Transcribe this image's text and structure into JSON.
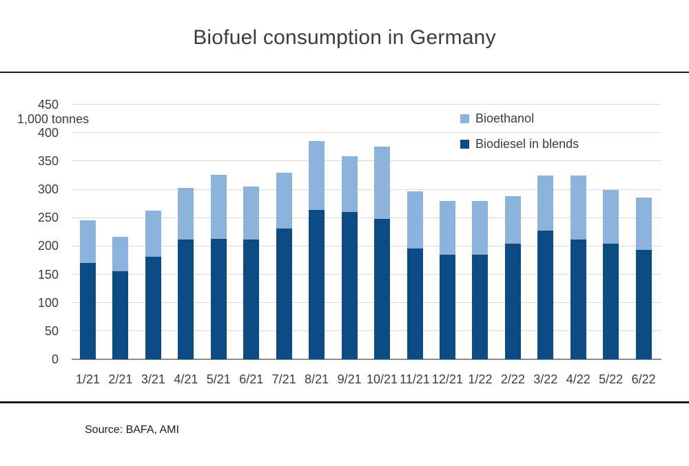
{
  "title": "Biofuel consumption in Germany",
  "unit_label": "1,000 tonnes",
  "source": "Source: BAFA, AMI",
  "legend": [
    {
      "label": "Bioethanol",
      "color": "#8CB3DB"
    },
    {
      "label": "Biodiesel in blends",
      "color": "#0D4B85"
    }
  ],
  "colors": {
    "bioethanol": "#8CB3DB",
    "biodiesel": "#0D4B85",
    "gridline": "#d9d9d9",
    "axis_line": "#8c8c8c",
    "divider": "#1a1a1a",
    "text": "#3c3c3c"
  },
  "chart_data": {
    "type": "bar",
    "stacked": true,
    "title": "Biofuel consumption in Germany",
    "ylabel": "1,000 tonnes",
    "xlabel": "",
    "ylim": [
      0,
      450
    ],
    "ytick_step": 50,
    "grid": true,
    "legend_position": "top-right",
    "categories": [
      "1/21",
      "2/21",
      "3/21",
      "4/21",
      "5/21",
      "6/21",
      "7/21",
      "8/21",
      "9/21",
      "10/21",
      "11/21",
      "12/21",
      "1/22",
      "2/22",
      "3/22",
      "4/22",
      "5/22",
      "6/22"
    ],
    "series": [
      {
        "name": "Biodiesel in blends",
        "color": "#0D4B85",
        "values": [
          170,
          156,
          181,
          211,
          213,
          212,
          231,
          264,
          260,
          248,
          196,
          185,
          185,
          204,
          227,
          212,
          204,
          193
        ]
      },
      {
        "name": "Bioethanol",
        "color": "#8CB3DB",
        "values": [
          76,
          60,
          82,
          91,
          113,
          93,
          98,
          121,
          98,
          127,
          100,
          95,
          95,
          84,
          98,
          113,
          95,
          92
        ]
      }
    ],
    "totals": [
      246,
      216,
      263,
      302,
      326,
      305,
      329,
      385,
      358,
      375,
      296,
      280,
      280,
      288,
      325,
      325,
      299,
      285
    ],
    "source": "Source: BAFA, AMI"
  }
}
